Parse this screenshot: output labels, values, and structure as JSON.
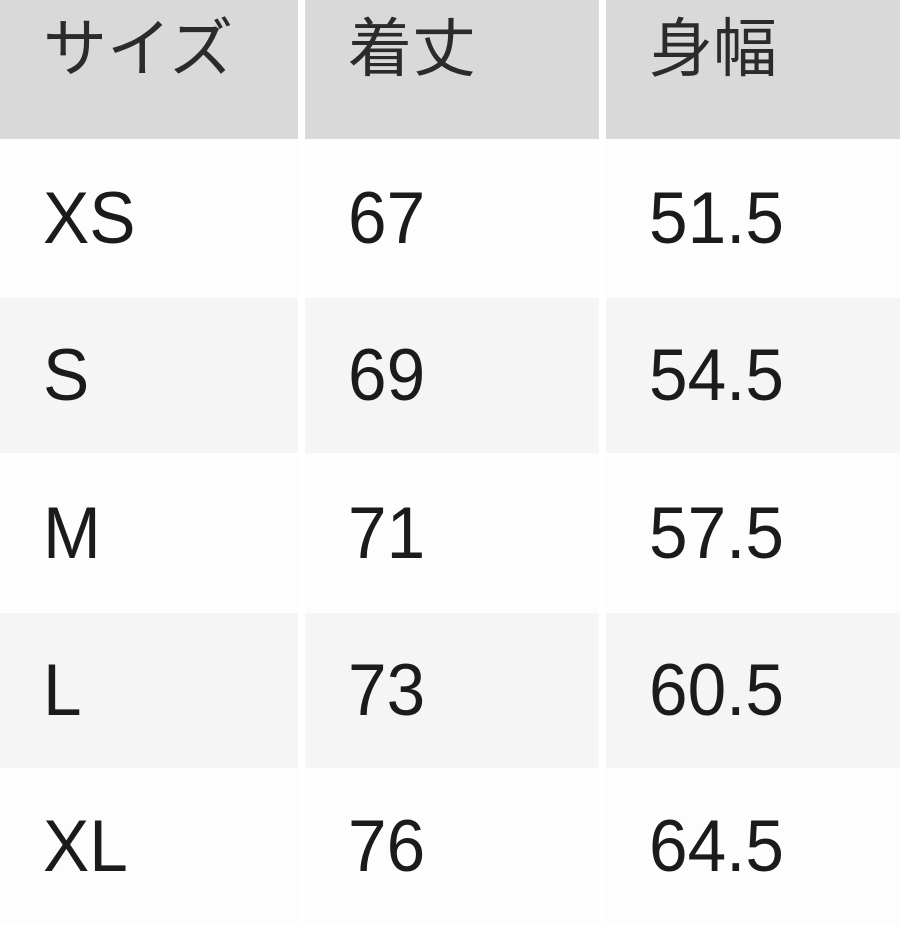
{
  "chart_data": {
    "type": "table",
    "columns": [
      "サイズ",
      "着丈",
      "身幅"
    ],
    "rows": [
      [
        "XS",
        "67",
        "51.5"
      ],
      [
        "S",
        "69",
        "54.5"
      ],
      [
        "M",
        "71",
        "57.5"
      ],
      [
        "L",
        "73",
        "60.5"
      ],
      [
        "XL",
        "76",
        "64.5"
      ]
    ],
    "notes": "size chart table; header row partially cropped at top, XL row partially cropped at bottom",
    "colors": {
      "header_bg": "#d9d9d9",
      "row_bg": "#fdfdfd",
      "row_alt_bg": "#f5f5f5",
      "gap_bg": "#ffffff",
      "header_text": "#2b2b2b",
      "cell_text": "#1b1b1b"
    }
  }
}
